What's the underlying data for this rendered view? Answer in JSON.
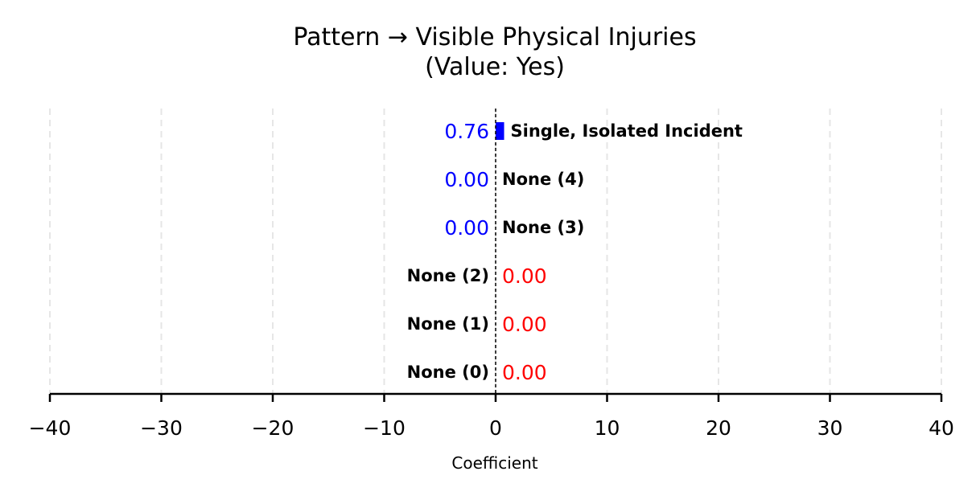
{
  "chart_data": {
    "type": "bar",
    "orientation": "horizontal",
    "title": "Pattern → Visible Physical Injuries",
    "subtitle": "(Value: Yes)",
    "xlabel": "Coefficient",
    "ylabel": "",
    "xlim": [
      -40,
      40
    ],
    "xticks": [
      -40,
      -30,
      -20,
      -10,
      0,
      10,
      20,
      30,
      40
    ],
    "xtick_labels": [
      "−40",
      "−30",
      "−20",
      "−10",
      "0",
      "10",
      "20",
      "30",
      "40"
    ],
    "grid": "vertical dashed",
    "reference_line": 0,
    "categories": [
      "None (0)",
      "None (1)",
      "None (2)",
      "None (3)",
      "None (4)",
      "Single, Isolated Incident"
    ],
    "values": [
      0.0,
      0.0,
      0.0,
      0.0,
      0.0,
      0.76
    ],
    "value_labels": [
      "0.00",
      "0.00",
      "0.00",
      "0.00",
      "0.00",
      "0.76"
    ],
    "value_label_colors": [
      "#ff0000",
      "#ff0000",
      "#ff0000",
      "#0000ff",
      "#0000ff",
      "#0000ff"
    ],
    "bar_color": "#0000ff",
    "gridline_color": "#e6e6e6",
    "axis_color": "#000000"
  }
}
